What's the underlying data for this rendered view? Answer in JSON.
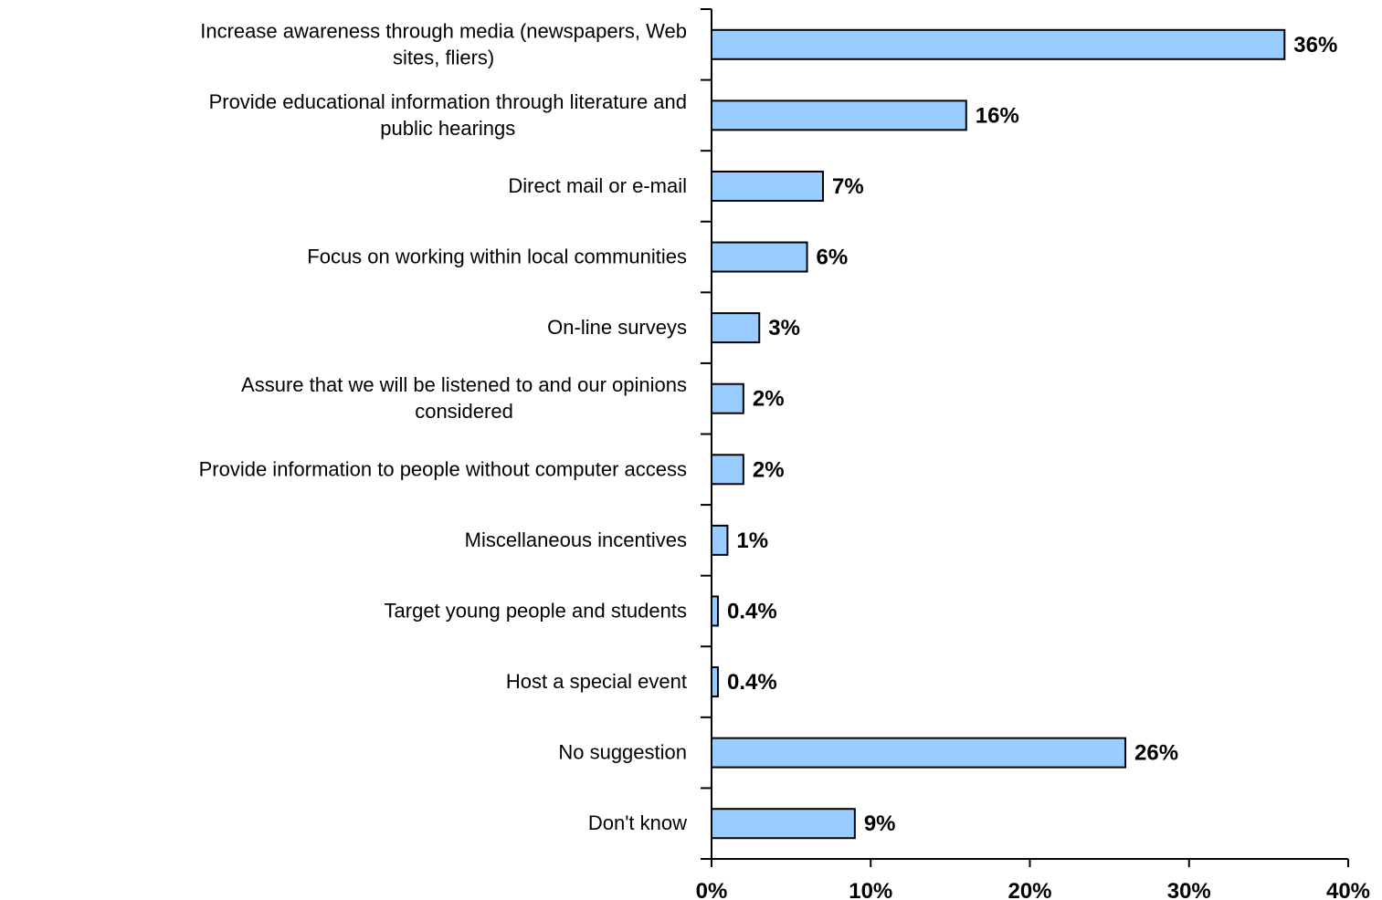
{
  "chart_data": {
    "type": "bar",
    "orientation": "horizontal",
    "categories": [
      [
        "Increase awareness through media (newspapers, Web",
        "sites, fliers)"
      ],
      [
        "Provide educational information through literature and",
        "public hearings"
      ],
      [
        "Direct mail or e-mail"
      ],
      [
        "Focus on working within local communities"
      ],
      [
        "On-line surveys"
      ],
      [
        "Assure that we will be listened to and our opinions",
        "considered"
      ],
      [
        "Provide information to people without computer access"
      ],
      [
        "Miscellaneous incentives"
      ],
      [
        "Target young people and students"
      ],
      [
        "Host a special event"
      ],
      [
        "No suggestion"
      ],
      [
        "Don't know"
      ]
    ],
    "values": [
      36,
      16,
      7,
      6,
      3,
      2,
      2,
      1,
      0.4,
      0.4,
      26,
      9
    ],
    "value_labels": [
      "36%",
      "16%",
      "7%",
      "6%",
      "3%",
      "2%",
      "2%",
      "1%",
      "0.4%",
      "0.4%",
      "26%",
      "9%"
    ],
    "xlim": [
      0,
      40
    ],
    "x_ticks": [
      0,
      10,
      20,
      30,
      40
    ],
    "x_tick_labels": [
      "0%",
      "10%",
      "20%",
      "30%",
      "40%"
    ],
    "bar_color": "#99ccff",
    "grid": false,
    "legend": false
  }
}
